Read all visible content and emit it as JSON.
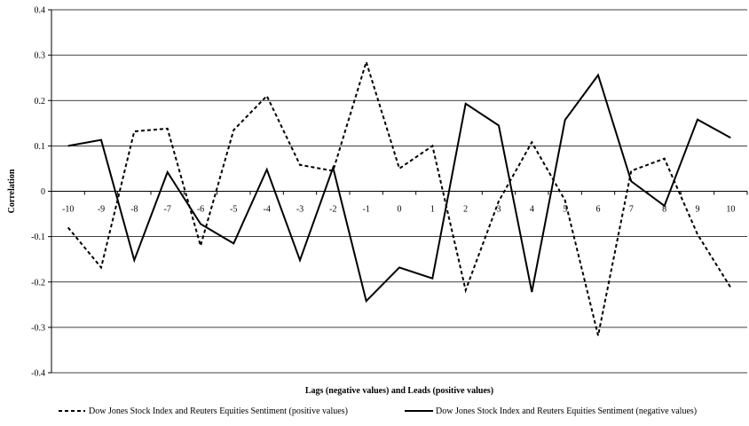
{
  "chart_data": {
    "type": "line",
    "title": "",
    "xlabel": "Lags (negative values) and Leads (positive values)",
    "ylabel": "Correlation",
    "x": [
      -10,
      -9,
      -8,
      -7,
      -6,
      -5,
      -4,
      -3,
      -2,
      -1,
      0,
      1,
      2,
      3,
      4,
      5,
      6,
      7,
      8,
      9,
      10
    ],
    "x_tick_labels": [
      "-10",
      "-9",
      "-8",
      "-7",
      "-6",
      "-5",
      "-4",
      "-3",
      "-2",
      "-1",
      "0",
      "1",
      "2",
      "3",
      "4",
      "5",
      "6",
      "7",
      "8",
      "9",
      "10"
    ],
    "ylim": [
      -0.4,
      0.4
    ],
    "y_ticks": [
      0.4,
      0.3,
      0.2,
      0.1,
      0,
      -0.1,
      -0.2,
      -0.3,
      -0.4
    ],
    "y_tick_labels": [
      "0.4",
      "0.3",
      "0.2",
      "0.1",
      "0",
      "-0.1",
      "-0.2",
      "-0.3",
      "-0.4"
    ],
    "grid": true,
    "legend_position": "bottom",
    "series": [
      {
        "name": "Dow Jones Stock Index and Reuters Equities Sentiment (positive values)",
        "style": "dashed",
        "color": "#000000",
        "values": [
          -0.08,
          -0.168,
          0.132,
          0.138,
          -0.12,
          0.135,
          0.21,
          0.058,
          0.045,
          0.285,
          0.05,
          0.1,
          -0.218,
          -0.022,
          0.108,
          -0.02,
          -0.318,
          0.045,
          0.072,
          -0.095,
          -0.212
        ]
      },
      {
        "name": "Dow Jones Stock Index and Reuters Equities Sentiment (negative values)",
        "style": "solid",
        "color": "#000000",
        "values": [
          0.1,
          0.113,
          -0.152,
          0.042,
          -0.072,
          -0.115,
          0.048,
          -0.152,
          0.052,
          -0.242,
          -0.168,
          -0.192,
          0.193,
          0.145,
          -0.222,
          0.157,
          0.256,
          0.022,
          -0.032,
          0.158,
          0.118
        ]
      }
    ]
  }
}
